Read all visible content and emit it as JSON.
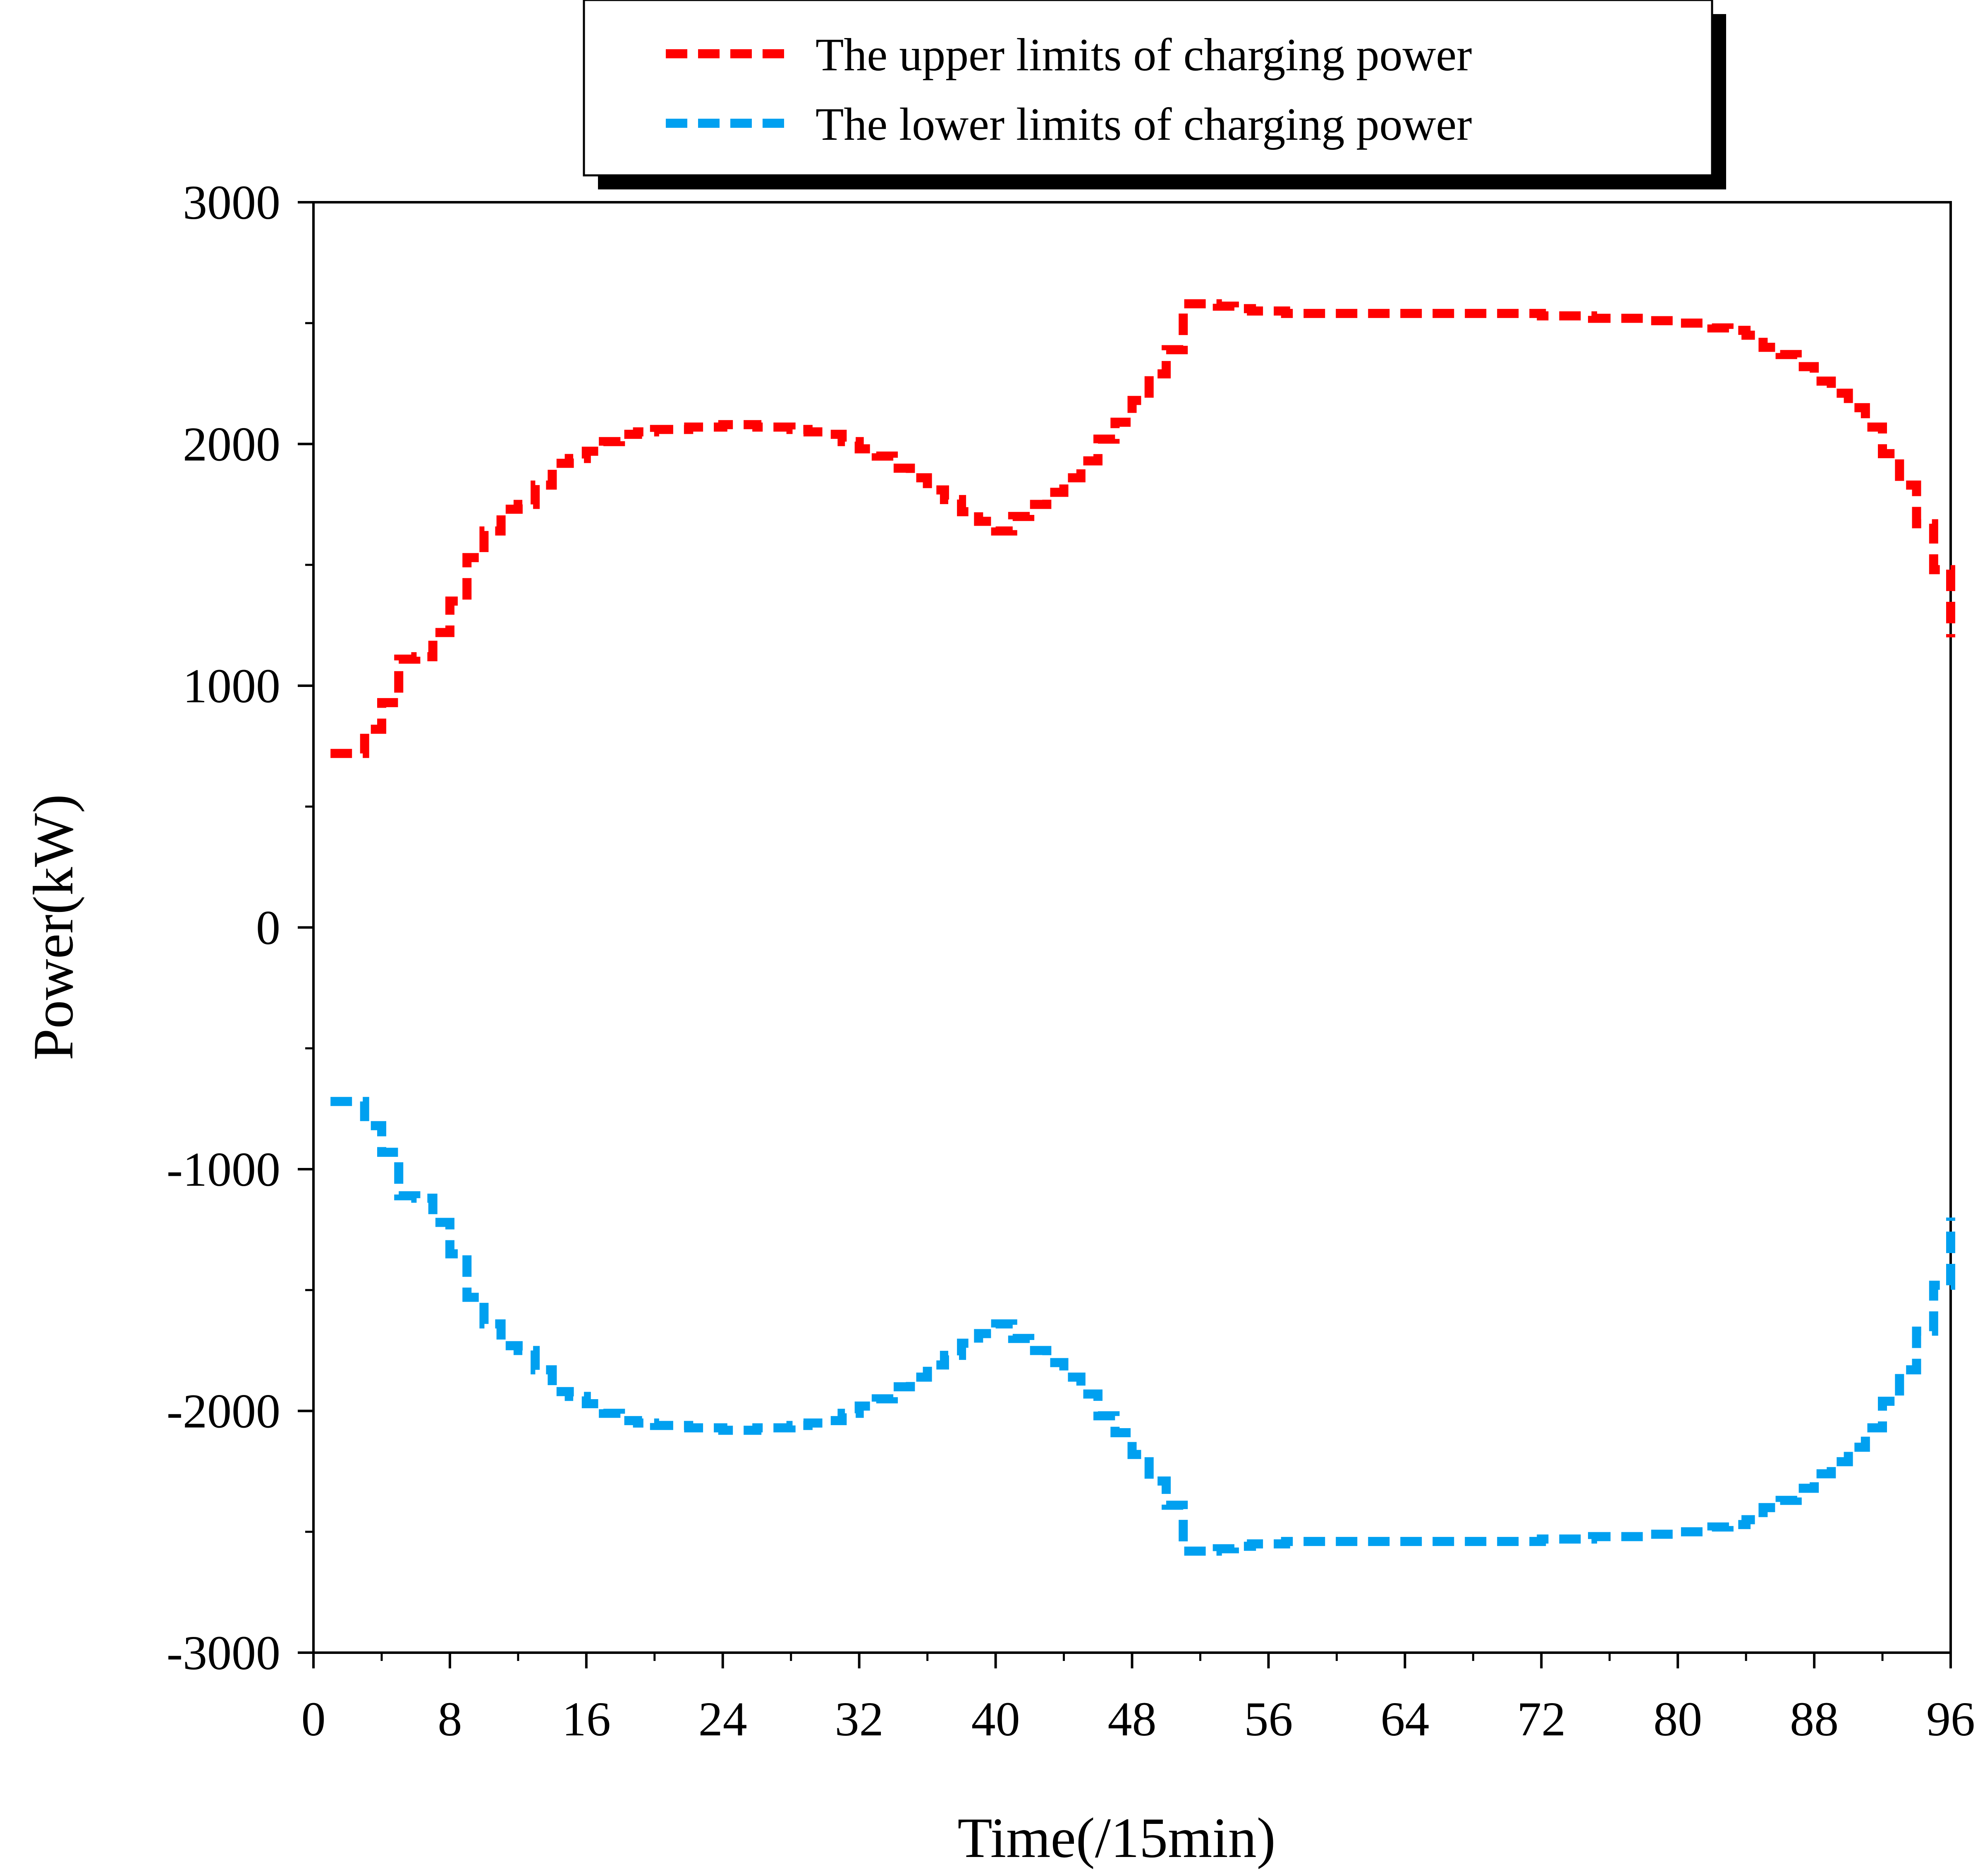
{
  "chart_data": {
    "type": "line",
    "title": "",
    "xlabel": "Time(/15min)",
    "ylabel": "Power(kW)",
    "xlim": [
      0,
      96
    ],
    "ylim": [
      -3000,
      3000
    ],
    "x_ticks": [
      0,
      8,
      16,
      24,
      32,
      40,
      48,
      56,
      64,
      72,
      80,
      88,
      96
    ],
    "y_ticks": [
      -3000,
      -2000,
      -1000,
      0,
      1000,
      2000,
      3000
    ],
    "x_tick_labels": [
      "0",
      "8",
      "16",
      "24",
      "32",
      "40",
      "48",
      "56",
      "64",
      "72",
      "80",
      "88",
      "96"
    ],
    "y_tick_labels": [
      "-3000",
      "-2000",
      "-1000",
      "0",
      "1000",
      "2000",
      "3000"
    ],
    "grid": false,
    "legend_position": "top",
    "series": [
      {
        "name": "The upper  limits of charging power",
        "color": "#ff0000",
        "line_style": "dashed",
        "x": [
          1,
          2,
          3,
          4,
          5,
          6,
          7,
          8,
          9,
          10,
          11,
          12,
          13,
          14,
          15,
          16,
          17,
          18,
          19,
          20,
          21,
          22,
          23,
          24,
          25,
          26,
          27,
          28,
          29,
          30,
          31,
          32,
          33,
          34,
          35,
          36,
          37,
          38,
          39,
          40,
          41,
          42,
          43,
          44,
          45,
          46,
          47,
          48,
          49,
          50,
          51,
          52,
          53,
          54,
          55,
          56,
          57,
          58,
          59,
          60,
          61,
          62,
          63,
          64,
          65,
          66,
          67,
          68,
          69,
          70,
          71,
          72,
          73,
          74,
          75,
          76,
          77,
          78,
          79,
          80,
          81,
          82,
          83,
          84,
          85,
          86,
          87,
          88,
          89,
          90,
          91,
          92,
          93,
          94,
          95,
          96
        ],
        "values": [
          720,
          720,
          820,
          930,
          1110,
          1120,
          1220,
          1350,
          1530,
          1640,
          1730,
          1750,
          1830,
          1920,
          1940,
          1970,
          2010,
          2040,
          2050,
          2060,
          2060,
          2070,
          2070,
          2080,
          2080,
          2070,
          2070,
          2060,
          2050,
          2040,
          2010,
          1980,
          1950,
          1900,
          1860,
          1810,
          1770,
          1720,
          1680,
          1640,
          1700,
          1750,
          1800,
          1860,
          1930,
          2020,
          2090,
          2180,
          2290,
          2390,
          2580,
          2580,
          2570,
          2560,
          2550,
          2550,
          2540,
          2540,
          2540,
          2540,
          2540,
          2540,
          2540,
          2540,
          2540,
          2540,
          2540,
          2540,
          2540,
          2540,
          2540,
          2530,
          2530,
          2530,
          2520,
          2520,
          2520,
          2510,
          2510,
          2500,
          2500,
          2480,
          2470,
          2450,
          2400,
          2370,
          2320,
          2260,
          2210,
          2150,
          2070,
          1960,
          1830,
          1670,
          1480,
          1200
        ]
      },
      {
        "name": "The lower limits of charging power",
        "color": "#00a0f0",
        "line_style": "dashed",
        "x": [
          1,
          2,
          3,
          4,
          5,
          6,
          7,
          8,
          9,
          10,
          11,
          12,
          13,
          14,
          15,
          16,
          17,
          18,
          19,
          20,
          21,
          22,
          23,
          24,
          25,
          26,
          27,
          28,
          29,
          30,
          31,
          32,
          33,
          34,
          35,
          36,
          37,
          38,
          39,
          40,
          41,
          42,
          43,
          44,
          45,
          46,
          47,
          48,
          49,
          50,
          51,
          52,
          53,
          54,
          55,
          56,
          57,
          58,
          59,
          60,
          61,
          62,
          63,
          64,
          65,
          66,
          67,
          68,
          69,
          70,
          71,
          72,
          73,
          74,
          75,
          76,
          77,
          78,
          79,
          80,
          81,
          82,
          83,
          84,
          85,
          86,
          87,
          88,
          89,
          90,
          91,
          92,
          93,
          94,
          95,
          96
        ],
        "values": [
          -720,
          -720,
          -820,
          -930,
          -1110,
          -1120,
          -1220,
          -1350,
          -1530,
          -1640,
          -1730,
          -1750,
          -1830,
          -1920,
          -1940,
          -1970,
          -2010,
          -2040,
          -2050,
          -2060,
          -2060,
          -2070,
          -2070,
          -2080,
          -2080,
          -2070,
          -2070,
          -2060,
          -2050,
          -2040,
          -2010,
          -1980,
          -1950,
          -1900,
          -1860,
          -1810,
          -1770,
          -1720,
          -1680,
          -1640,
          -1700,
          -1750,
          -1800,
          -1860,
          -1930,
          -2020,
          -2090,
          -2180,
          -2290,
          -2390,
          -2580,
          -2580,
          -2570,
          -2560,
          -2550,
          -2550,
          -2540,
          -2540,
          -2540,
          -2540,
          -2540,
          -2540,
          -2540,
          -2540,
          -2540,
          -2540,
          -2540,
          -2540,
          -2540,
          -2540,
          -2540,
          -2530,
          -2530,
          -2530,
          -2520,
          -2520,
          -2520,
          -2510,
          -2510,
          -2500,
          -2500,
          -2480,
          -2470,
          -2450,
          -2400,
          -2370,
          -2320,
          -2260,
          -2210,
          -2150,
          -2070,
          -1960,
          -1830,
          -1670,
          -1480,
          -1200
        ]
      }
    ]
  }
}
